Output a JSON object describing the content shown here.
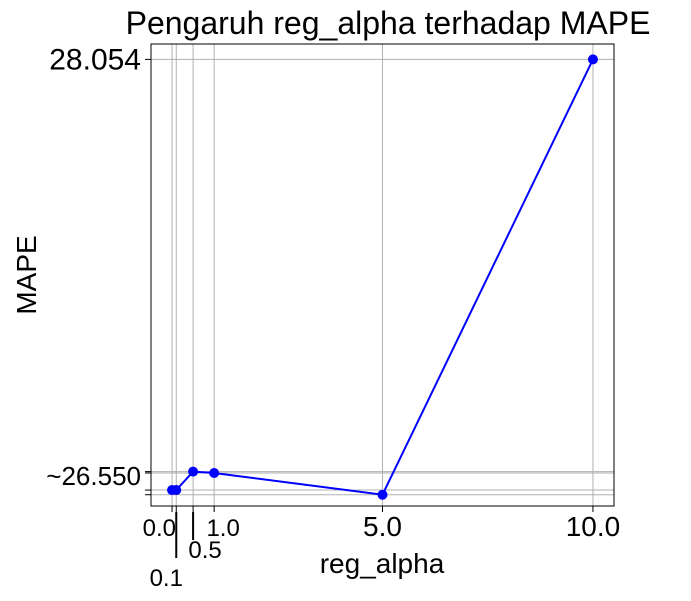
{
  "chart_data": {
    "type": "line",
    "title": "Pengaruh reg_alpha terhadap MAPE",
    "xlabel": "reg_alpha",
    "ylabel": "MAPE",
    "x": [
      0.0,
      0.1,
      0.5,
      1.0,
      5.0,
      10.0
    ],
    "series": [
      {
        "values": [
          26.488,
          26.488,
          26.555,
          26.55,
          26.471,
          28.054
        ]
      }
    ],
    "xlim": [
      -0.5,
      10.5
    ],
    "ylim": [
      26.43,
      28.11
    ],
    "x_ticks": [
      {
        "value": 0.0,
        "label": "0.0"
      },
      {
        "value": 0.1,
        "label": "0.1"
      },
      {
        "value": 0.5,
        "label": "0.5"
      },
      {
        "value": 1.0,
        "label": "1.0"
      },
      {
        "value": 5.0,
        "label": "5.0"
      },
      {
        "value": 10.0,
        "label": "10.0"
      }
    ],
    "y_ticks": [
      {
        "value": 26.471,
        "label": ""
      },
      {
        "value": 26.488,
        "label": ""
      },
      {
        "value": 26.55,
        "label": "~26.550"
      },
      {
        "value": 26.555,
        "label": ""
      },
      {
        "value": 28.054,
        "label": "28.054"
      }
    ],
    "grid": true,
    "colors": {
      "line": "#0000ff",
      "grid": "#b0b0b0",
      "axis": "#000000"
    }
  }
}
